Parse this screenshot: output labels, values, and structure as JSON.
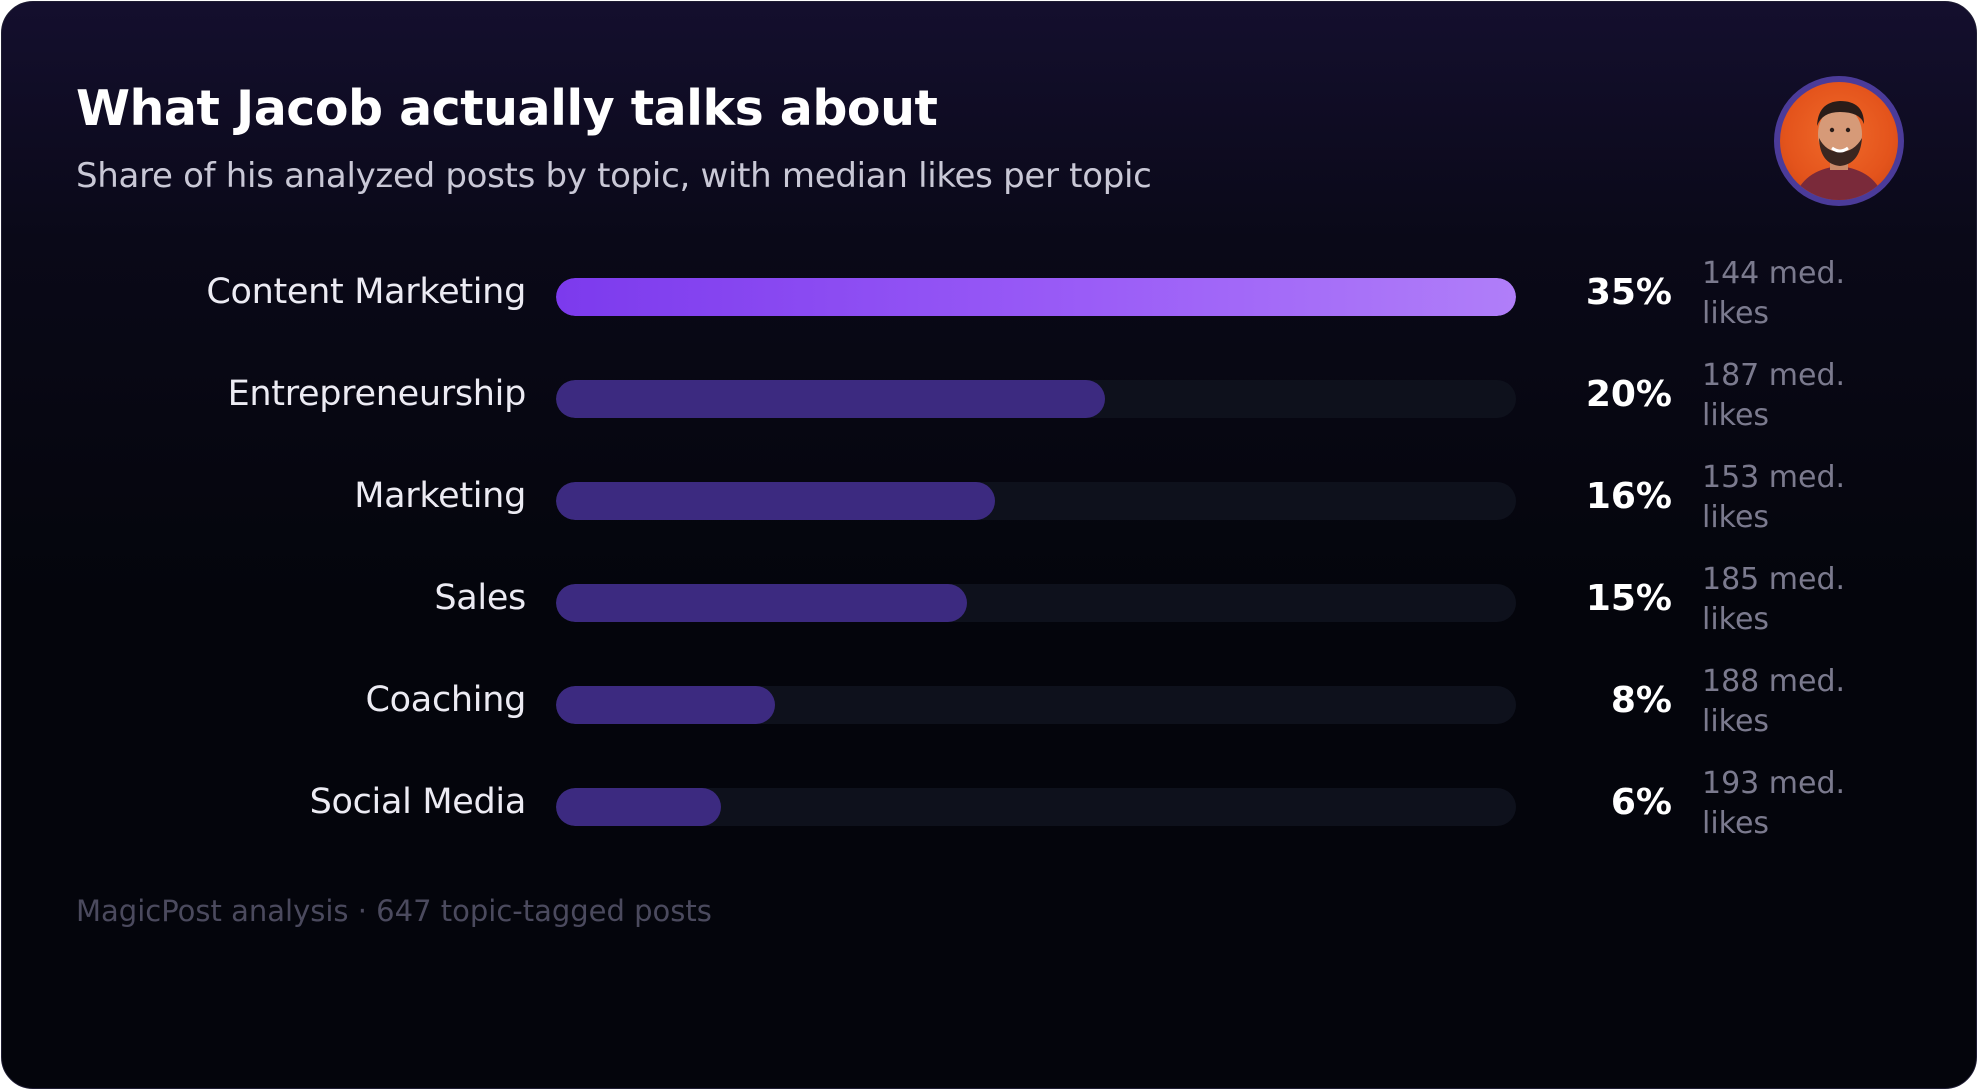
{
  "header": {
    "title": "What Jacob actually talks about",
    "subtitle": "Share of his analyzed posts by topic, with median likes per topic"
  },
  "avatar": {
    "icon": "person-avatar-icon",
    "ring_color": "#4b3b99",
    "background_color": "#e4541c"
  },
  "colors": {
    "top_bar_start": "#7c3aed",
    "top_bar_end": "#b07ef9",
    "bar": "#3c2a80",
    "track": "#0e111c"
  },
  "chart_data": {
    "type": "bar",
    "orientation": "horizontal",
    "title": "What Jacob actually talks about",
    "subtitle": "Share of his analyzed posts by topic, with median likes per topic",
    "categories": [
      "Content Marketing",
      "Entrepreneurship",
      "Marketing",
      "Sales",
      "Coaching",
      "Social Media"
    ],
    "values": [
      35,
      20,
      16,
      15,
      8,
      6
    ],
    "value_labels": [
      "35%",
      "20%",
      "16%",
      "15%",
      "8%",
      "6%"
    ],
    "median_likes": [
      144,
      187,
      153,
      185,
      188,
      193
    ],
    "median_likes_labels": [
      "144 med. likes",
      "187 med. likes",
      "153 med. likes",
      "185 med. likes",
      "188 med. likes",
      "193 med. likes"
    ],
    "grid": false,
    "legend": "none"
  },
  "footer": {
    "source": "MagicPost analysis · 647 topic-tagged posts"
  }
}
